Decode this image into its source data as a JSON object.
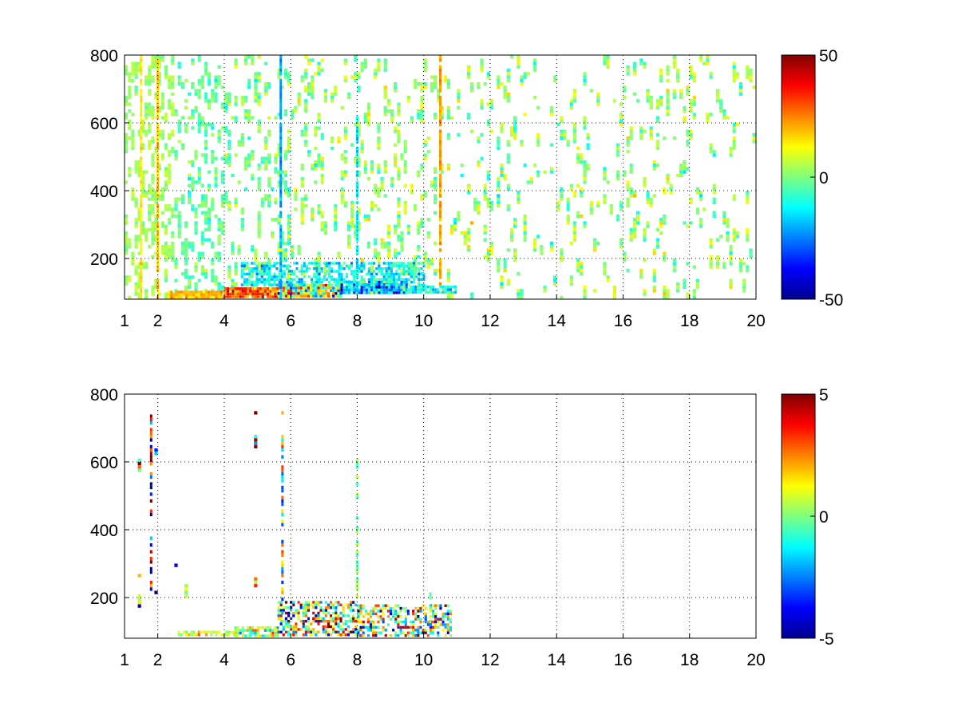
{
  "figure": {
    "background": "#ffffff"
  },
  "chart_data": [
    {
      "type": "heatmap",
      "title": "",
      "xlabel": "",
      "ylabel": "",
      "xlim": [
        1,
        20
      ],
      "ylim": [
        80,
        800
      ],
      "xticks": [
        1,
        2,
        4,
        6,
        8,
        10,
        12,
        14,
        16,
        18,
        20
      ],
      "yticks": [
        200,
        400,
        600,
        800
      ],
      "grid": true,
      "colormap": "jet",
      "clim": [
        -50,
        50
      ],
      "colorbar_ticks": [
        50,
        0,
        -50
      ],
      "seed": 11,
      "background_clusters": [
        {
          "x": [
            1.0,
            2.5
          ],
          "y": [
            80,
            800
          ],
          "density": 0.55,
          "vmean": 3,
          "vspread": 4
        },
        {
          "x": [
            2.5,
            4.0
          ],
          "y": [
            80,
            800
          ],
          "density": 0.42,
          "vmean": -3,
          "vspread": 6
        },
        {
          "x": [
            4.0,
            6.0
          ],
          "y": [
            80,
            800
          ],
          "density": 0.3,
          "vmean": 0,
          "vspread": 8
        },
        {
          "x": [
            6.0,
            10.5
          ],
          "y": [
            150,
            800
          ],
          "density": 0.22,
          "vmean": 2,
          "vspread": 9
        },
        {
          "x": [
            10.5,
            20.0
          ],
          "y": [
            80,
            800
          ],
          "density": 0.15,
          "vmean": 2,
          "vspread": 10
        }
      ],
      "band_clusters": [
        {
          "x": [
            2.3,
            4.0
          ],
          "y": [
            85,
            105
          ],
          "density": 0.9,
          "vmean": 18,
          "vspread": 6
        },
        {
          "x": [
            4.0,
            5.6
          ],
          "y": [
            85,
            115
          ],
          "density": 0.95,
          "vmean": 30,
          "vspread": 12
        },
        {
          "x": [
            5.6,
            7.5
          ],
          "y": [
            90,
            125
          ],
          "density": 0.95,
          "vmean": 5,
          "vspread": 28
        },
        {
          "x": [
            7.5,
            9.5
          ],
          "y": [
            95,
            135
          ],
          "density": 0.95,
          "vmean": -22,
          "vspread": 20
        },
        {
          "x": [
            9.5,
            11.0
          ],
          "y": [
            95,
            120
          ],
          "density": 0.9,
          "vmean": -14,
          "vspread": 10
        },
        {
          "x": [
            4.5,
            10.0
          ],
          "y": [
            120,
            190
          ],
          "density": 0.6,
          "vmean": -12,
          "vspread": 10
        }
      ],
      "vertical_streaks": [
        {
          "x": 5.7,
          "y": [
            80,
            800
          ],
          "value": -22
        },
        {
          "x": 2.0,
          "y": [
            80,
            800
          ],
          "value": 18
        },
        {
          "x": 10.5,
          "y": [
            120,
            800
          ],
          "value": 22
        },
        {
          "x": 8.0,
          "y": [
            100,
            620
          ],
          "value": -14
        },
        {
          "x": 1.5,
          "y": [
            80,
            800
          ],
          "value": 14
        }
      ]
    },
    {
      "type": "heatmap",
      "title": "",
      "xlabel": "",
      "ylabel": "",
      "xlim": [
        1,
        20
      ],
      "ylim": [
        80,
        800
      ],
      "xticks": [
        1,
        2,
        4,
        6,
        8,
        10,
        12,
        14,
        16,
        18,
        20
      ],
      "yticks": [
        200,
        400,
        600,
        800
      ],
      "grid": true,
      "colormap": "jet",
      "clim": [
        -5,
        5
      ],
      "colorbar_ticks": [
        5,
        0,
        -5
      ],
      "seed": 29,
      "background_clusters": [
        {
          "x": [
            1.0,
            5.0
          ],
          "y": [
            150,
            780
          ],
          "density": 0.012,
          "vmean": 0,
          "vspread": 4
        }
      ],
      "band_clusters": [
        {
          "x": [
            2.6,
            4.3
          ],
          "y": [
            85,
            102
          ],
          "density": 0.7,
          "vmean": 0.8,
          "vspread": 1.2
        },
        {
          "x": [
            4.3,
            5.6
          ],
          "y": [
            85,
            115
          ],
          "density": 0.85,
          "vmean": 0.5,
          "vspread": 2
        },
        {
          "x": [
            5.6,
            8.0
          ],
          "y": [
            85,
            190
          ],
          "density": 0.55,
          "vmean": 0.5,
          "vspread": 4
        },
        {
          "x": [
            8.0,
            10.8
          ],
          "y": [
            90,
            180
          ],
          "density": 0.55,
          "vmean": 0,
          "vspread": 3.5
        }
      ],
      "vertical_streaks": [
        {
          "x": 5.75,
          "y": [
            150,
            750
          ],
          "value": 2.5,
          "mixed": true
        },
        {
          "x": 8.0,
          "y": [
            200,
            630
          ],
          "value": 0.5,
          "mixed": true
        },
        {
          "x": 1.8,
          "y": [
            220,
            760
          ],
          "value": 4.5,
          "mixed": true
        },
        {
          "x": 10.2,
          "y": [
            90,
            225
          ],
          "value": 0.3,
          "mixed": true
        }
      ]
    }
  ]
}
